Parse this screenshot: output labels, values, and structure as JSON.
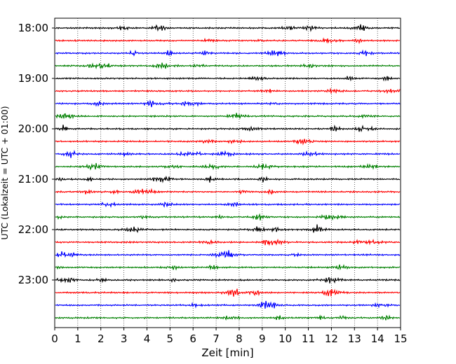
{
  "chart_data": {
    "type": "line",
    "xlabel": "Zeit  [min]",
    "ylabel": "UTC (Lokalzeit = UTC + 01:00)",
    "xlim": [
      0,
      15
    ],
    "x_ticks": [
      "0",
      "1",
      "2",
      "3",
      "4",
      "5",
      "6",
      "7",
      "8",
      "9",
      "10",
      "11",
      "12",
      "13",
      "14",
      "15"
    ],
    "y_ticks": [
      "18:00",
      "19:00",
      "20:00",
      "21:00",
      "22:00",
      "23:00"
    ],
    "grid": {
      "vertical": true,
      "style": "dotted"
    },
    "trace_interval_minutes": 15,
    "trace_start": "18:00",
    "trace_count": 24,
    "trace_colors": [
      "#000000",
      "#ff0000",
      "#0000ff",
      "#008000"
    ]
  }
}
